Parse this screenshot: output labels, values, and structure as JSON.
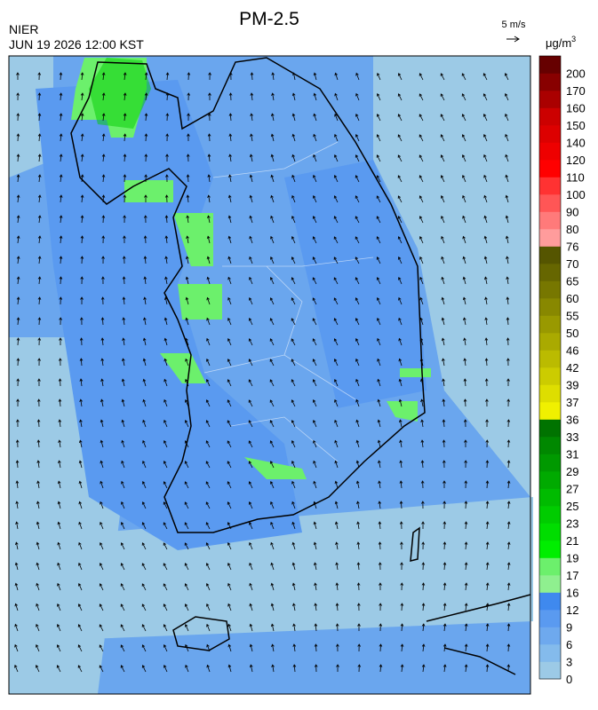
{
  "title": "PM-2.5",
  "agency": "NIER",
  "datetime": "JUN 19 2026 12:00 KST",
  "wind_scale": "5 m/s",
  "unit": "μg/m",
  "unit_exponent": "3",
  "legend": {
    "labels": [
      0,
      3,
      6,
      9,
      12,
      16,
      17,
      19,
      21,
      23,
      25,
      27,
      29,
      31,
      33,
      36,
      37,
      39,
      42,
      46,
      50,
      55,
      60,
      65,
      70,
      76,
      80,
      90,
      100,
      110,
      120,
      140,
      150,
      160,
      170,
      200
    ],
    "colors": [
      "#9ccae6",
      "#84bbec",
      "#6ea9ee",
      "#5a9af0",
      "#3f89ee",
      "#8ff08f",
      "#6cf06c",
      "#00ee00",
      "#00dd00",
      "#00cc00",
      "#00bb00",
      "#00aa00",
      "#009900",
      "#008800",
      "#007300",
      "#f0f000",
      "#dede00",
      "#cccc00",
      "#bbbb00",
      "#aaaa00",
      "#999900",
      "#888800",
      "#777700",
      "#666600",
      "#555500",
      "#ff9c9c",
      "#ff7a7a",
      "#ff5656",
      "#ff3232",
      "#ff0000",
      "#ee0000",
      "#dd0000",
      "#cc0000",
      "#aa0000",
      "#880000",
      "#660000"
    ]
  }
}
